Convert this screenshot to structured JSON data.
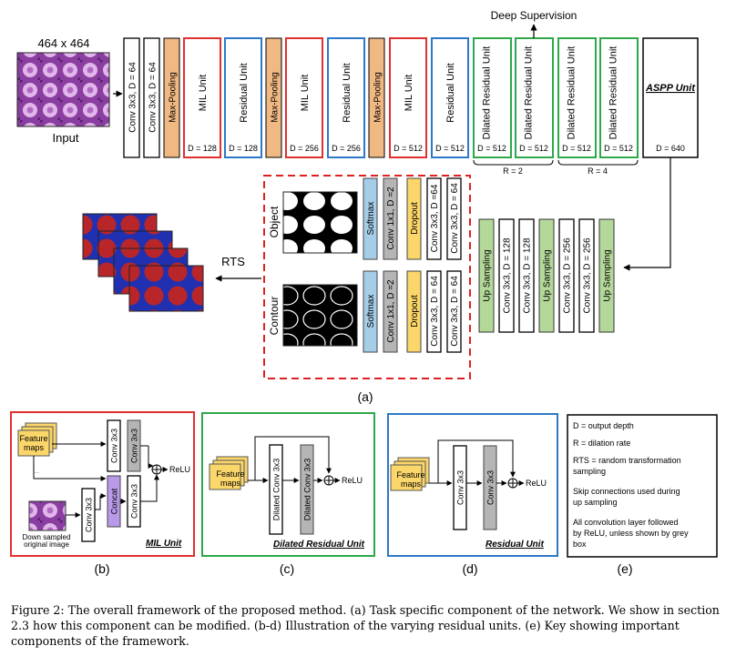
{
  "main": {
    "input_size": "464 x 464",
    "input_label": "Input",
    "deep_supervision": "Deep Supervision",
    "conv1": "Conv 3x3, D = 64",
    "conv2": "Conv 3x3, D = 64",
    "maxpool": "Max-Pooling",
    "mil_unit": "MIL Unit",
    "residual_unit": "Residual Unit",
    "dilated_residual_unit": "Dilated Residual Unit",
    "aspp_unit": "ASPP Unit",
    "d128": "D = 128",
    "d256": "D = 256",
    "d512": "D = 512",
    "d640": "D = 640",
    "r2": "R = 2",
    "r4": "R = 4"
  },
  "decoder": {
    "up_sampling": "Up Sampling",
    "conv128": "Conv 3x3, D = 128",
    "conv256": "Conv 3x3, D = 256"
  },
  "head": {
    "object_label": "Object",
    "contour_label": "Contour",
    "softmax": "Softmax",
    "conv1x1": "Conv 1x1, D =2",
    "dropout": "Dropout",
    "conv64a": "Conv 3x3, D =64",
    "conv64b": "Conv 3x3, D = 64",
    "rts": "RTS",
    "panel_a": "(a)"
  },
  "panels": {
    "feature_maps": "Feature maps",
    "conv3x3": "Conv 3x3",
    "concat": "Concat",
    "relu": "ReLU",
    "downsampled": "Down sampled original image",
    "dilated_conv": "Dilated Conv 3x3",
    "mil_title": "MIL Unit",
    "dilated_title": "Dilated Residual Unit",
    "residual_title": "Residual Unit",
    "b": "(b)",
    "c": "(c)",
    "d": "(d)",
    "e": "(e)"
  },
  "key": [
    "D = output depth",
    "R = dilation rate",
    "RTS = random transformation sampling",
    "Skip connections used during up sampling",
    "All convolution layer followed by ReLU, unless shown by grey box"
  ],
  "caption": "Figure 2: The overall framework of the proposed method. (a) Task specific component of the network. We show in section 2.3 how this component can be modified. (b-d) Illustration of the varying residual units. (e) Key showing important components of the framework.",
  "colors": {
    "mil": "#e03030",
    "residual": "#2d78c8",
    "dilated": "#2ea84a",
    "pool": "#f0b882",
    "green_fill": "#b4d89a",
    "blue_fill": "#a6cde8",
    "grey_fill": "#b5b5b5",
    "yellow_fill": "#fbd66a",
    "purple_fill": "#b89ae8"
  }
}
